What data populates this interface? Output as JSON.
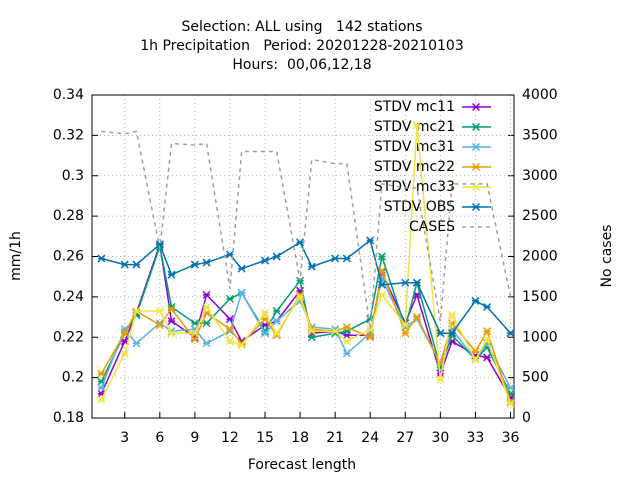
{
  "chart_data": {
    "type": "line",
    "title": [
      "Selection: ALL using   142 stations",
      "1h Precipitation   Period: 20201228-20210103",
      "Hours:  00,06,12,18"
    ],
    "xlabel": "Forecast length",
    "ylabel": "mm/1h",
    "y2label": "No cases",
    "x": [
      1,
      3,
      4,
      6,
      7,
      9,
      10,
      12,
      13,
      15,
      16,
      18,
      19,
      21,
      22,
      24,
      25,
      27,
      28,
      30,
      31,
      33,
      34,
      36
    ],
    "series": [
      {
        "name": "STDV mc11",
        "color": "#9400d3",
        "values": [
          0.192,
          0.218,
          0.232,
          0.266,
          0.228,
          0.22,
          0.241,
          0.229,
          0.218,
          0.226,
          0.228,
          0.243,
          0.222,
          0.223,
          0.221,
          0.221,
          0.252,
          0.227,
          0.241,
          0.202,
          0.218,
          0.211,
          0.21,
          0.19
        ]
      },
      {
        "name": "STDV mc21",
        "color": "#009e73",
        "values": [
          0.198,
          0.222,
          0.231,
          0.265,
          0.235,
          0.227,
          0.227,
          0.239,
          0.242,
          0.223,
          0.233,
          0.248,
          0.22,
          0.222,
          0.223,
          0.229,
          0.26,
          0.225,
          0.247,
          0.205,
          0.221,
          0.209,
          0.215,
          0.192
        ]
      },
      {
        "name": "STDV mc31",
        "color": "#56b4e9",
        "values": [
          0.195,
          0.224,
          0.217,
          0.227,
          0.223,
          0.224,
          0.217,
          0.223,
          0.242,
          0.222,
          0.228,
          0.238,
          0.225,
          0.224,
          0.212,
          0.222,
          0.249,
          0.225,
          0.229,
          0.207,
          0.224,
          0.209,
          0.217,
          0.195
        ]
      },
      {
        "name": "STDV mc22",
        "color": "#e69f00",
        "values": [
          0.202,
          0.222,
          0.233,
          0.226,
          0.234,
          0.219,
          0.232,
          0.224,
          0.217,
          0.229,
          0.221,
          0.241,
          0.224,
          0.223,
          0.225,
          0.22,
          0.253,
          0.222,
          0.23,
          0.207,
          0.227,
          0.213,
          0.223,
          0.188
        ]
      },
      {
        "name": "STDV mc33",
        "color": "#f0e442",
        "values": [
          0.189,
          0.212,
          0.233,
          0.233,
          0.222,
          0.222,
          0.235,
          0.218,
          0.216,
          0.232,
          0.222,
          0.24,
          0.223,
          0.223,
          0.218,
          0.224,
          0.241,
          0.226,
          0.325,
          0.199,
          0.231,
          0.209,
          0.219,
          0.187
        ]
      },
      {
        "name": "STDV OBS",
        "color": "#0072b2",
        "values": [
          0.259,
          0.256,
          0.256,
          0.266,
          0.251,
          0.256,
          0.257,
          0.261,
          0.254,
          0.258,
          0.26,
          0.267,
          0.255,
          0.259,
          0.259,
          0.268,
          0.246,
          0.247,
          0.247,
          0.222,
          0.222,
          0.238,
          0.235,
          0.222
        ]
      },
      {
        "name": "CASES",
        "color": "#a0a0a0",
        "axis": "y2",
        "dashed": true,
        "values": [
          3550,
          3520,
          3550,
          2100,
          3400,
          3380,
          3400,
          1600,
          3300,
          3300,
          3300,
          1700,
          3200,
          3150,
          3150,
          1100,
          2900,
          2850,
          2850,
          1200,
          2900,
          2900,
          2900,
          1500
        ]
      }
    ],
    "xlim": [
      0.2,
      36.3
    ],
    "xticks": [
      3,
      6,
      9,
      12,
      15,
      18,
      21,
      24,
      27,
      30,
      33,
      36
    ],
    "ylim": [
      0.18,
      0.34
    ],
    "yticks": [
      0.18,
      0.2,
      0.22,
      0.24,
      0.26,
      0.28,
      0.3,
      0.32,
      0.34
    ],
    "y2lim": [
      0,
      4000
    ],
    "y2ticks": [
      0,
      500,
      1000,
      1500,
      2000,
      2500,
      3000,
      3500,
      4000
    ],
    "grid": true,
    "legend": "top-right"
  }
}
